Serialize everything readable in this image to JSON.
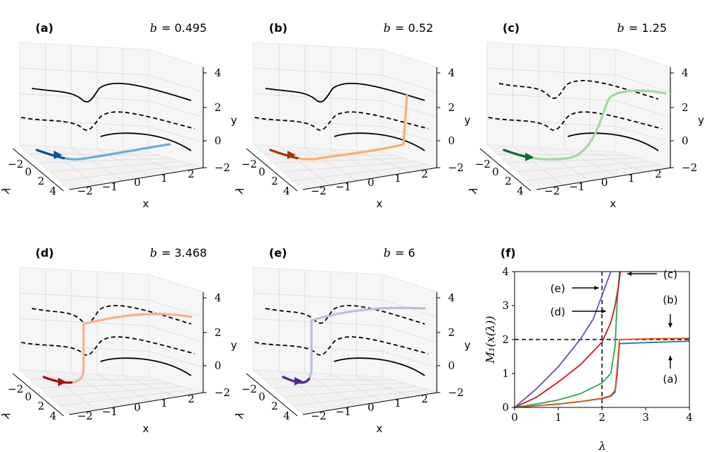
{
  "figure_panels": [
    {
      "letter": "(a)",
      "b_var": "b",
      "b_value": "= 0.495",
      "color_dark": "#08519c",
      "color_light": "#6baed6"
    },
    {
      "letter": "(b)",
      "b_var": "b",
      "b_value": "= 0.52",
      "color_dark": "#a63603",
      "color_light": "#fdae6b"
    },
    {
      "letter": "(c)",
      "b_var": "b",
      "b_value": "= 1.25",
      "color_dark": "#006d2c",
      "color_light": "#a1d99b"
    },
    {
      "letter": "(d)",
      "b_var": "b",
      "b_value": "= 3.468",
      "color_dark": "#a50f15",
      "color_light": "#fcae91"
    },
    {
      "letter": "(e)",
      "b_var": "b",
      "b_value": "= 6",
      "color_dark": "#54278f",
      "color_light": "#bcbddc"
    }
  ],
  "axes3d": {
    "x_label": "x",
    "y_label": "y",
    "lambda_label": "λ",
    "x_ticks": [
      "−2",
      "−1",
      "0",
      "1",
      "2"
    ],
    "y_ticks": [
      "−2",
      "0",
      "2",
      "4"
    ],
    "lambda_ticks": [
      "−2",
      "0",
      "2",
      "4"
    ]
  },
  "chart_data": {
    "type": "line",
    "panel": "(f)",
    "title": "",
    "xlabel": "λ",
    "ylabel": "M₁(x(λ))",
    "xlim": [
      0,
      4
    ],
    "ylim": [
      0,
      4
    ],
    "xticks": [
      "0",
      "1",
      "2",
      "3",
      "4"
    ],
    "yticks": [
      "0",
      "1",
      "2",
      "3",
      "4"
    ],
    "reference_lines": [
      {
        "orientation": "horizontal",
        "value": 2,
        "style": "dashed"
      },
      {
        "orientation": "vertical",
        "value": 2,
        "style": "dashed"
      }
    ],
    "series": [
      {
        "name": "(a)",
        "color": "#2171b5",
        "x": [
          0,
          0.5,
          1,
          1.5,
          2,
          2.2,
          2.3,
          2.35,
          2.4,
          3,
          4
        ],
        "y": [
          0,
          0.05,
          0.1,
          0.17,
          0.26,
          0.33,
          0.45,
          1.0,
          1.88,
          1.91,
          1.95
        ]
      },
      {
        "name": "(b)",
        "color": "#e6550d",
        "x": [
          0,
          0.5,
          1,
          1.5,
          2,
          2.2,
          2.3,
          2.35,
          2.4,
          3,
          4
        ],
        "y": [
          0,
          0.05,
          0.1,
          0.17,
          0.27,
          0.35,
          0.5,
          1.2,
          2.0,
          2.02,
          2.04
        ]
      },
      {
        "name": "(c)",
        "color": "#31a354",
        "x": [
          0,
          0.5,
          1,
          1.5,
          2,
          2.2,
          2.3,
          2.35,
          2.4
        ],
        "y": [
          0,
          0.1,
          0.22,
          0.4,
          0.72,
          1.0,
          1.8,
          3.2,
          4.0
        ]
      },
      {
        "name": "(d)",
        "color": "#cb181d",
        "x": [
          0,
          0.5,
          1,
          1.5,
          2,
          2.2,
          2.3,
          2.38,
          2.42
        ],
        "y": [
          0,
          0.3,
          0.75,
          1.25,
          1.92,
          2.5,
          3.0,
          3.6,
          4.0
        ]
      },
      {
        "name": "(e)",
        "color": "#6a51a3",
        "x": [
          0,
          0.5,
          1,
          1.5,
          1.8,
          2.0,
          2.2
        ],
        "y": [
          0,
          0.55,
          1.2,
          2.0,
          2.6,
          3.3,
          4.0
        ]
      }
    ],
    "annotations": [
      {
        "text": "(a)",
        "arrow": "up",
        "points_to": [
          3.6,
          1.95
        ]
      },
      {
        "text": "(b)",
        "arrow": "down",
        "points_to": [
          3.6,
          2.05
        ]
      },
      {
        "text": "(c)",
        "arrow": "left",
        "points_to": [
          2.4,
          3.85
        ]
      },
      {
        "text": "(d)",
        "arrow": "right",
        "points_to": [
          2.15,
          2.8
        ]
      },
      {
        "text": "(e)",
        "arrow": "right",
        "points_to": [
          1.75,
          3.4
        ]
      }
    ]
  }
}
